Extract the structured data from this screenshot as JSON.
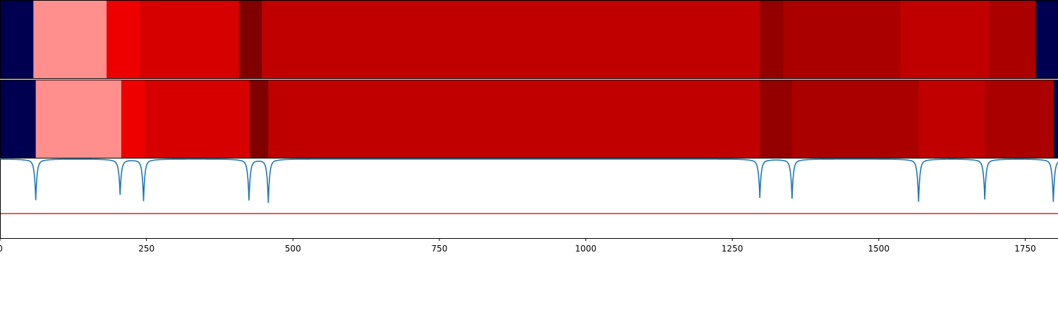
{
  "chart_data": [
    {
      "type": "heatmap",
      "name": "segmentation-track-1",
      "xlim": [
        0,
        1806
      ],
      "segments": [
        {
          "start": 0,
          "end": 57,
          "color": "#000050"
        },
        {
          "start": 57,
          "end": 182,
          "color": "#ff8f8c"
        },
        {
          "start": 182,
          "end": 238,
          "color": "#ee0000"
        },
        {
          "start": 238,
          "end": 408,
          "color": "#d60000"
        },
        {
          "start": 408,
          "end": 447,
          "color": "#800000"
        },
        {
          "start": 447,
          "end": 1297,
          "color": "#c00000"
        },
        {
          "start": 1297,
          "end": 1337,
          "color": "#940000"
        },
        {
          "start": 1337,
          "end": 1537,
          "color": "#aa0000"
        },
        {
          "start": 1537,
          "end": 1688,
          "color": "#c00000"
        },
        {
          "start": 1688,
          "end": 1768,
          "color": "#aa0000"
        },
        {
          "start": 1768,
          "end": 1806,
          "color": "#000050"
        }
      ]
    },
    {
      "type": "heatmap",
      "name": "segmentation-track-2",
      "xlim": [
        0,
        1806
      ],
      "segments": [
        {
          "start": 0,
          "end": 61,
          "color": "#000050"
        },
        {
          "start": 61,
          "end": 207,
          "color": "#ff8f8c"
        },
        {
          "start": 207,
          "end": 247,
          "color": "#ee0000"
        },
        {
          "start": 247,
          "end": 426,
          "color": "#d60000"
        },
        {
          "start": 426,
          "end": 458,
          "color": "#800000"
        },
        {
          "start": 458,
          "end": 1297,
          "color": "#c00000"
        },
        {
          "start": 1297,
          "end": 1352,
          "color": "#940000"
        },
        {
          "start": 1352,
          "end": 1568,
          "color": "#aa0000"
        },
        {
          "start": 1568,
          "end": 1681,
          "color": "#c00000"
        },
        {
          "start": 1681,
          "end": 1798,
          "color": "#aa0000"
        },
        {
          "start": 1798,
          "end": 1806,
          "color": "#000050"
        }
      ]
    },
    {
      "type": "line",
      "name": "boundary-signal",
      "xlim": [
        0,
        1806
      ],
      "ylim": [
        0,
        1
      ],
      "baseline": 1.0,
      "threshold": 0.31,
      "threshold_color": "#e8211c",
      "series_color": "#1f77b4",
      "dips": [
        {
          "x": 61,
          "depth": 0.47
        },
        {
          "x": 205,
          "depth": 0.4
        },
        {
          "x": 245,
          "depth": 0.48
        },
        {
          "x": 425,
          "depth": 0.47
        },
        {
          "x": 458,
          "depth": 0.5
        },
        {
          "x": 1297,
          "depth": 0.44
        },
        {
          "x": 1352,
          "depth": 0.45
        },
        {
          "x": 1568,
          "depth": 0.49
        },
        {
          "x": 1681,
          "depth": 0.46
        },
        {
          "x": 1798,
          "depth": 0.49
        }
      ]
    }
  ],
  "x_axis": {
    "ticks": [
      0,
      250,
      500,
      750,
      1000,
      1250,
      1500,
      1750
    ],
    "tick_labels": [
      "0",
      "250",
      "500",
      "750",
      "1000",
      "1250",
      "1500",
      "1750"
    ]
  }
}
